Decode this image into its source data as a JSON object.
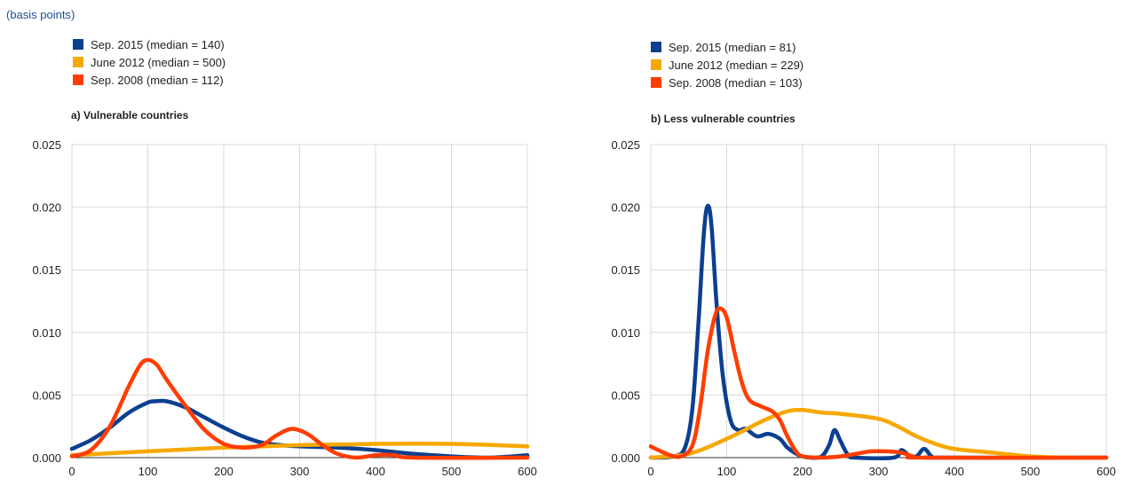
{
  "header": {
    "unit_note": "(basis points)"
  },
  "chart_data": [
    {
      "type": "line",
      "title": "a) Vulnerable countries",
      "xlabel": "",
      "ylabel": "",
      "xlim": [
        0,
        600
      ],
      "ylim": [
        0,
        0.025
      ],
      "xticks": [
        0,
        100,
        200,
        300,
        400,
        500,
        600
      ],
      "xtick_labels": [
        "0",
        "100",
        "200",
        "300",
        "400",
        "500",
        "600"
      ],
      "yticks": [
        0,
        0.005,
        0.01,
        0.015,
        0.02,
        0.025
      ],
      "ytick_labels": [
        "0.000",
        "0.005",
        "0.010",
        "0.015",
        "0.020",
        "0.025"
      ],
      "grid": true,
      "legend_position": "top-left",
      "series": [
        {
          "name": "Sep. 2015 (median = 140)",
          "color": "#0b3f8f",
          "points": [
            [
              0,
              0.0007
            ],
            [
              25,
              0.0014
            ],
            [
              50,
              0.0024
            ],
            [
              75,
              0.0036
            ],
            [
              100,
              0.0044
            ],
            [
              110,
              0.0045
            ],
            [
              125,
              0.0045
            ],
            [
              150,
              0.004
            ],
            [
              175,
              0.0032
            ],
            [
              200,
              0.0024
            ],
            [
              225,
              0.0017
            ],
            [
              250,
              0.0012
            ],
            [
              275,
              0.001
            ],
            [
              300,
              0.0009
            ],
            [
              350,
              0.0008
            ],
            [
              400,
              0.0006
            ],
            [
              450,
              0.0003
            ],
            [
              500,
              0.0001
            ],
            [
              550,
              0.0
            ],
            [
              600,
              0.0002
            ]
          ]
        },
        {
          "name": "June 2012 (median = 500)",
          "color": "#f7a800",
          "points": [
            [
              0,
              0.0002
            ],
            [
              100,
              0.0005
            ],
            [
              200,
              0.0008
            ],
            [
              300,
              0.001
            ],
            [
              400,
              0.0011
            ],
            [
              500,
              0.0011
            ],
            [
              600,
              0.0009
            ]
          ]
        },
        {
          "name": "Sep. 2008 (median = 112)",
          "color": "#ff3d00",
          "points": [
            [
              0,
              0.0001
            ],
            [
              25,
              0.0006
            ],
            [
              50,
              0.0025
            ],
            [
              75,
              0.0057
            ],
            [
              90,
              0.0074
            ],
            [
              100,
              0.0078
            ],
            [
              112,
              0.0074
            ],
            [
              125,
              0.0062
            ],
            [
              150,
              0.0041
            ],
            [
              175,
              0.0022
            ],
            [
              200,
              0.0011
            ],
            [
              225,
              0.0008
            ],
            [
              250,
              0.001
            ],
            [
              270,
              0.0018
            ],
            [
              290,
              0.0023
            ],
            [
              310,
              0.0019
            ],
            [
              330,
              0.001
            ],
            [
              350,
              0.0003
            ],
            [
              375,
              0.0
            ],
            [
              400,
              0.0002
            ],
            [
              425,
              0.0002
            ],
            [
              450,
              0.0
            ],
            [
              600,
              0.0
            ]
          ]
        }
      ]
    },
    {
      "type": "line",
      "title": "b) Less vulnerable countries",
      "xlabel": "",
      "ylabel": "",
      "xlim": [
        0,
        600
      ],
      "ylim": [
        0,
        0.025
      ],
      "xticks": [
        0,
        100,
        200,
        300,
        400,
        500,
        600
      ],
      "xtick_labels": [
        "0",
        "100",
        "200",
        "300",
        "400",
        "500",
        "600"
      ],
      "yticks": [
        0,
        0.005,
        0.01,
        0.015,
        0.02,
        0.025
      ],
      "ytick_labels": [
        "0.000",
        "0.005",
        "0.010",
        "0.015",
        "0.020",
        "0.025"
      ],
      "grid": true,
      "legend_position": "top-left",
      "series": [
        {
          "name": "Sep. 2015 (median = 81)",
          "color": "#0b3f8f",
          "points": [
            [
              0,
              0.0
            ],
            [
              30,
              0.0001
            ],
            [
              45,
              0.0008
            ],
            [
              55,
              0.004
            ],
            [
              63,
              0.011
            ],
            [
              70,
              0.018
            ],
            [
              75,
              0.0201
            ],
            [
              80,
              0.0185
            ],
            [
              87,
              0.012
            ],
            [
              95,
              0.0065
            ],
            [
              105,
              0.003
            ],
            [
              115,
              0.0022
            ],
            [
              125,
              0.0023
            ],
            [
              140,
              0.0017
            ],
            [
              155,
              0.0019
            ],
            [
              170,
              0.0015
            ],
            [
              180,
              0.0008
            ],
            [
              195,
              0.0002
            ],
            [
              210,
              0.0
            ],
            [
              225,
              0.0001
            ],
            [
              235,
              0.001
            ],
            [
              242,
              0.0022
            ],
            [
              250,
              0.0013
            ],
            [
              260,
              0.0002
            ],
            [
              270,
              0.0
            ],
            [
              320,
              0.0
            ],
            [
              330,
              0.0006
            ],
            [
              340,
              0.0002
            ],
            [
              350,
              0.0001
            ],
            [
              360,
              0.0007
            ],
            [
              370,
              0.0001
            ],
            [
              380,
              0.0
            ],
            [
              600,
              0.0
            ]
          ]
        },
        {
          "name": "June 2012 (median = 229)",
          "color": "#f7a800",
          "points": [
            [
              0,
              0.0
            ],
            [
              50,
              0.0003
            ],
            [
              100,
              0.0015
            ],
            [
              150,
              0.003
            ],
            [
              180,
              0.0037
            ],
            [
              200,
              0.0038
            ],
            [
              225,
              0.0036
            ],
            [
              250,
              0.0035
            ],
            [
              300,
              0.0031
            ],
            [
              325,
              0.0025
            ],
            [
              350,
              0.0017
            ],
            [
              375,
              0.0011
            ],
            [
              400,
              0.0007
            ],
            [
              450,
              0.0004
            ],
            [
              500,
              0.0001
            ],
            [
              550,
              0.0
            ],
            [
              600,
              0.0
            ]
          ]
        },
        {
          "name": "Sep. 2008 (median = 103)",
          "color": "#ff3d00",
          "points": [
            [
              0,
              0.0009
            ],
            [
              10,
              0.0006
            ],
            [
              25,
              0.0002
            ],
            [
              40,
              0.0001
            ],
            [
              55,
              0.001
            ],
            [
              65,
              0.004
            ],
            [
              75,
              0.0085
            ],
            [
              85,
              0.0114
            ],
            [
              92,
              0.0119
            ],
            [
              100,
              0.0112
            ],
            [
              110,
              0.0085
            ],
            [
              120,
              0.006
            ],
            [
              130,
              0.0046
            ],
            [
              145,
              0.0041
            ],
            [
              160,
              0.0037
            ],
            [
              170,
              0.003
            ],
            [
              180,
              0.0017
            ],
            [
              190,
              0.0006
            ],
            [
              200,
              0.0001
            ],
            [
              225,
              0.0
            ],
            [
              250,
              0.0001
            ],
            [
              270,
              0.0003
            ],
            [
              290,
              0.0005
            ],
            [
              310,
              0.0005
            ],
            [
              330,
              0.0004
            ],
            [
              345,
              0.0001
            ],
            [
              360,
              0.0
            ],
            [
              600,
              0.0
            ]
          ]
        }
      ]
    }
  ]
}
